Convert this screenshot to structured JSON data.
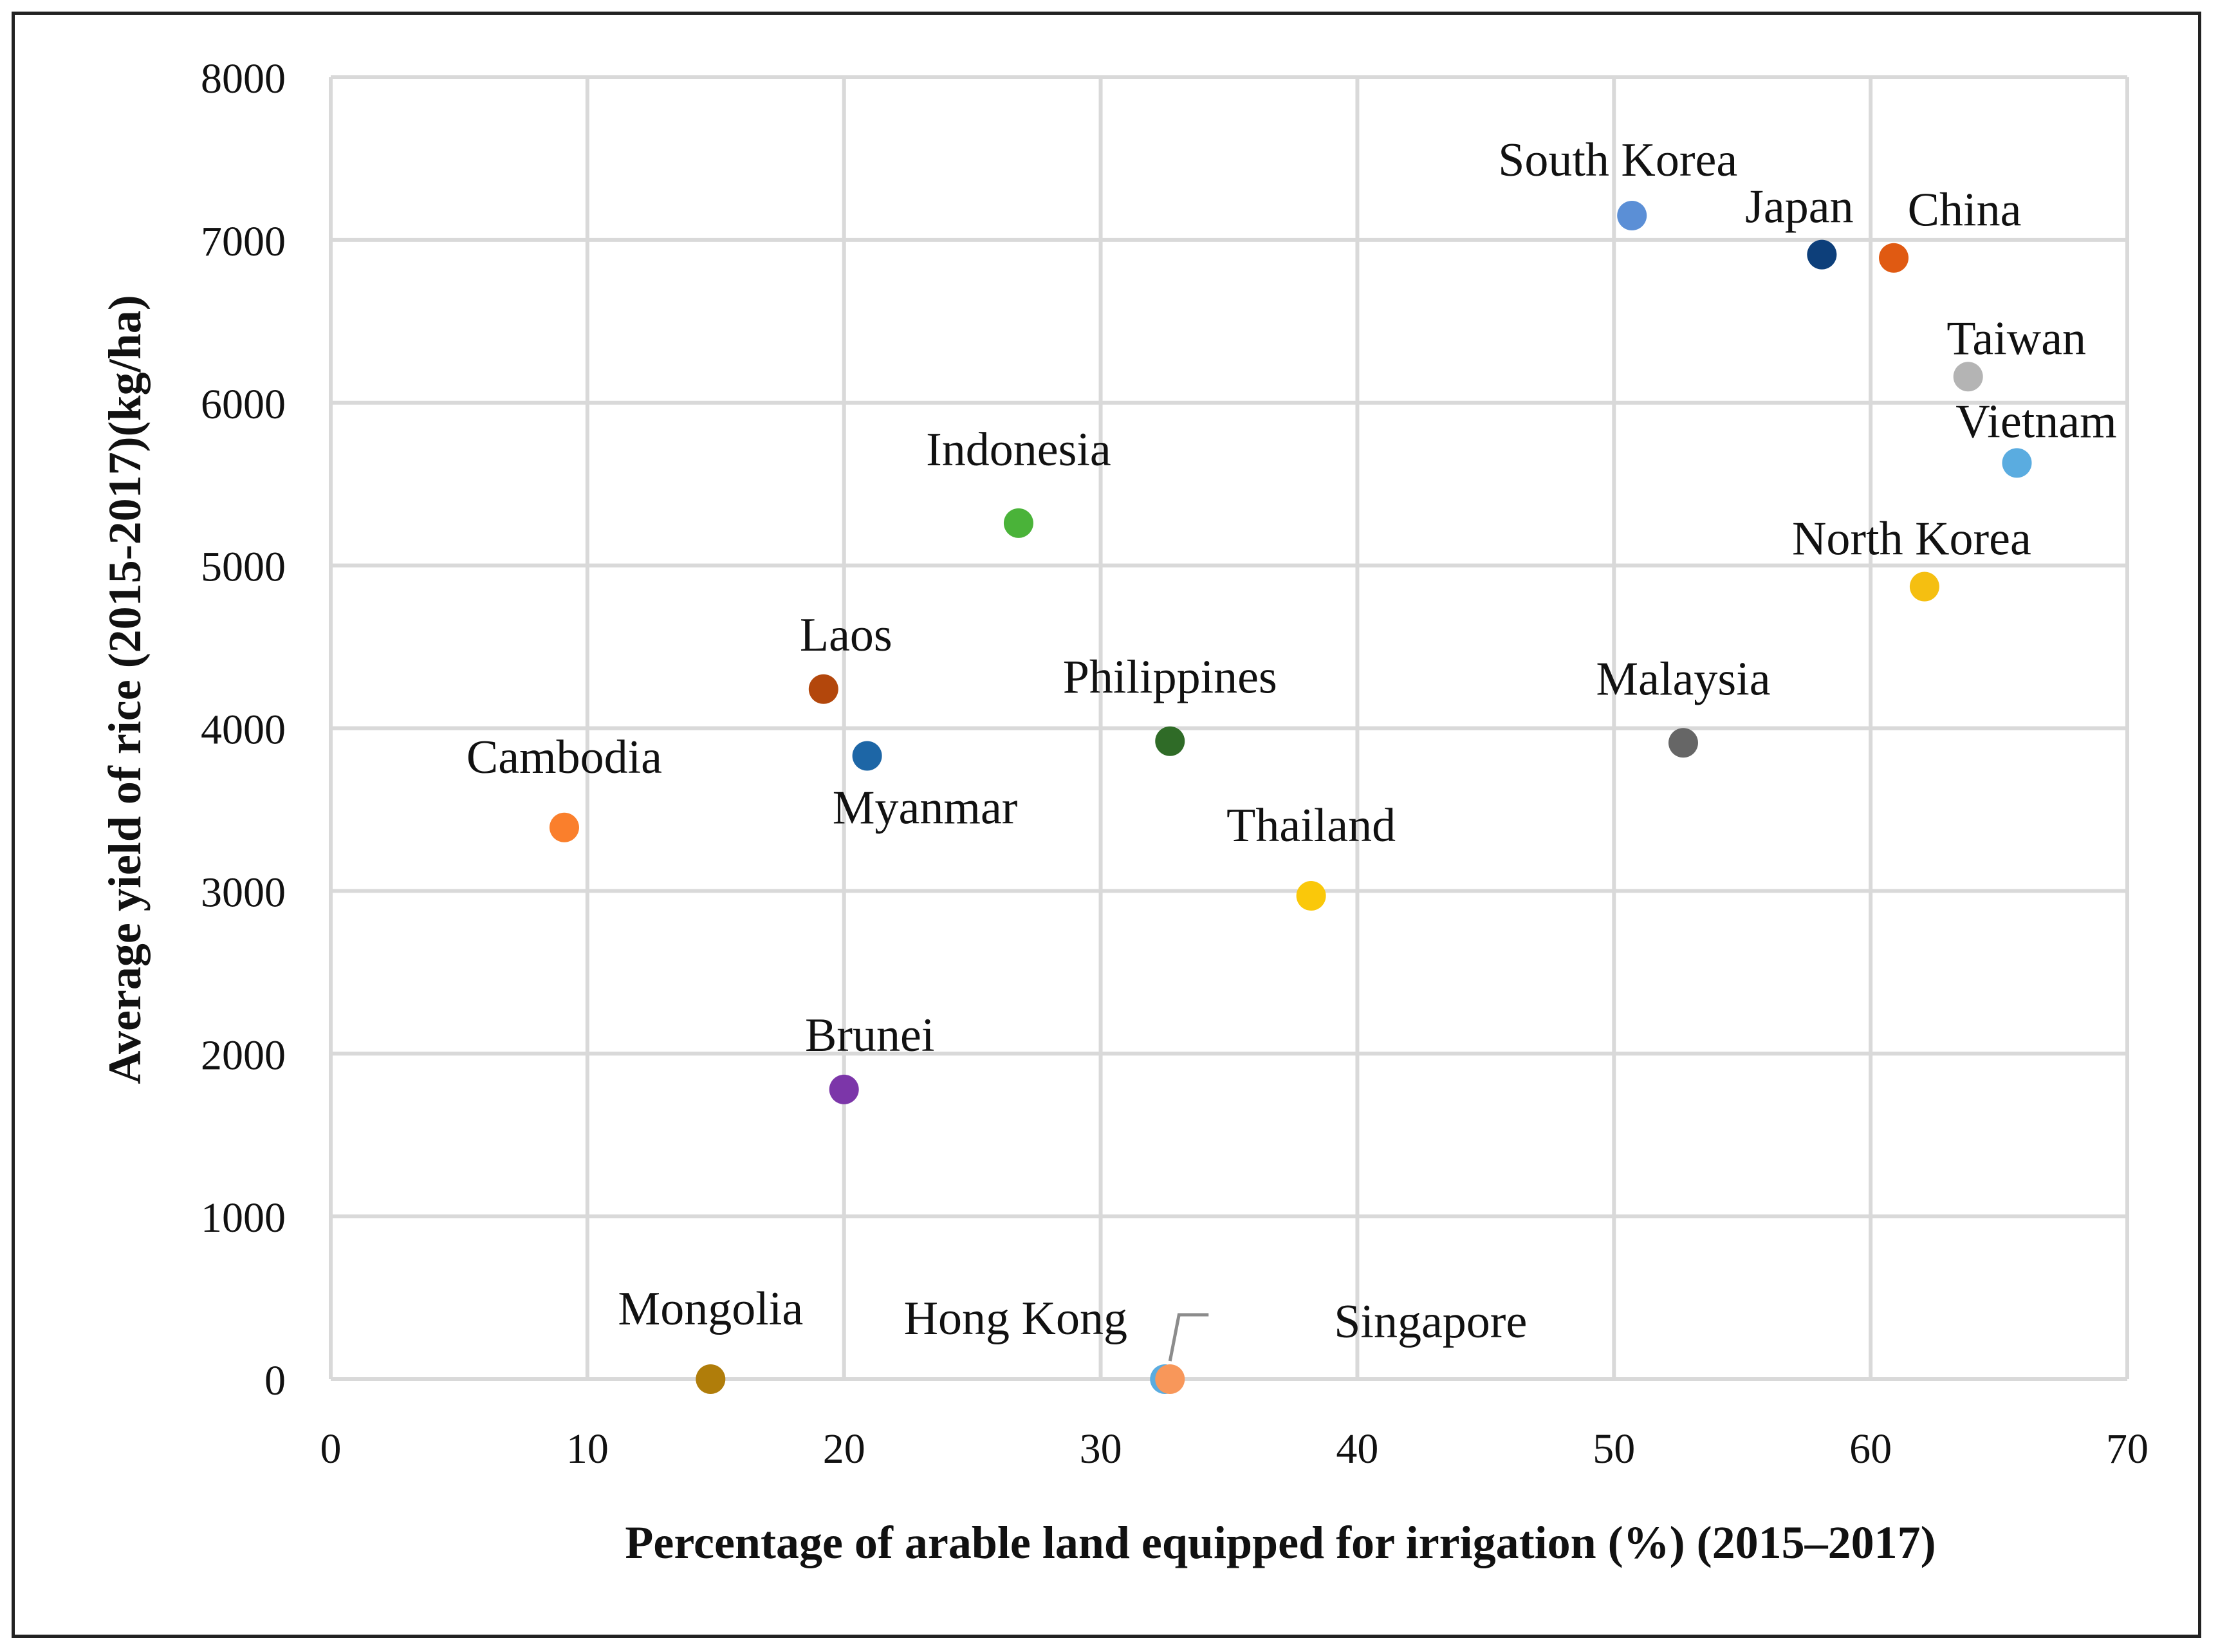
{
  "chart_data": {
    "type": "scatter",
    "title": "",
    "xlabel": "Percentage of arable land equipped for irrigation (%) (2015–2017)",
    "ylabel": "Average yield of rice (2015-2017)(kg/ha)",
    "xlim": [
      0,
      70
    ],
    "ylim": [
      0,
      8000
    ],
    "xticks": [
      0,
      10,
      20,
      30,
      40,
      50,
      60,
      70
    ],
    "yticks": [
      0,
      1000,
      2000,
      3000,
      4000,
      5000,
      6000,
      7000,
      8000
    ],
    "xtick_labels": [
      "0",
      "10",
      "20",
      "30",
      "40",
      "50",
      "60",
      "70"
    ],
    "ytick_labels": [
      "0",
      "1000",
      "2000",
      "3000",
      "4000",
      "5000",
      "6000",
      "7000",
      "8000"
    ],
    "grid": true,
    "legend": "none",
    "points": [
      {
        "label": "South Korea",
        "x": 50.7,
        "y": 7150,
        "color": "#5b8fd6",
        "label_pos": "above"
      },
      {
        "label": "Japan",
        "x": 58.1,
        "y": 6910,
        "color": "#0d3f7a",
        "label_pos": "above-left"
      },
      {
        "label": "China",
        "x": 60.9,
        "y": 6890,
        "color": "#e05a12",
        "label_pos": "above-right"
      },
      {
        "label": "Taiwan",
        "x": 63.8,
        "y": 6160,
        "color": "#b4b4b4",
        "label_pos": "above-right"
      },
      {
        "label": "Vietnam",
        "x": 65.7,
        "y": 5630,
        "color": "#5aace0",
        "label_pos": "above"
      },
      {
        "label": "Indonesia",
        "x": 26.8,
        "y": 5260,
        "color": "#4ab339",
        "label_pos": "above"
      },
      {
        "label": "North Korea",
        "x": 62.1,
        "y": 4870,
        "color": "#f5bf11",
        "label_pos": "above-left"
      },
      {
        "label": "Laos",
        "x": 19.2,
        "y": 4240,
        "color": "#b3470c",
        "label_pos": "above-right"
      },
      {
        "label": "Philippines",
        "x": 32.7,
        "y": 3920,
        "color": "#2f6b27",
        "label_pos": "above"
      },
      {
        "label": "Malaysia",
        "x": 52.7,
        "y": 3910,
        "color": "#666666",
        "label_pos": "above"
      },
      {
        "label": "Myanmar",
        "x": 20.9,
        "y": 3830,
        "color": "#1d66a6",
        "label_pos": "below-right"
      },
      {
        "label": "Cambodia",
        "x": 9.1,
        "y": 3390,
        "color": "#fa7f2c",
        "label_pos": "above"
      },
      {
        "label": "Thailand",
        "x": 38.2,
        "y": 2970,
        "color": "#fac80a",
        "label_pos": "above"
      },
      {
        "label": "Brunei",
        "x": 20.0,
        "y": 1780,
        "color": "#7c36a9",
        "label_pos": "above-right"
      },
      {
        "label": "Mongolia",
        "x": 14.8,
        "y": 0,
        "color": "#b07d0a",
        "label_pos": "above"
      },
      {
        "label": "Hong Kong",
        "x": 32.5,
        "y": 0,
        "color": "#5aace0",
        "label_pos": "above-left"
      },
      {
        "label": "Singapore",
        "x": 32.7,
        "y": 0,
        "color": "#f8975a",
        "label_pos": "right"
      }
    ]
  }
}
